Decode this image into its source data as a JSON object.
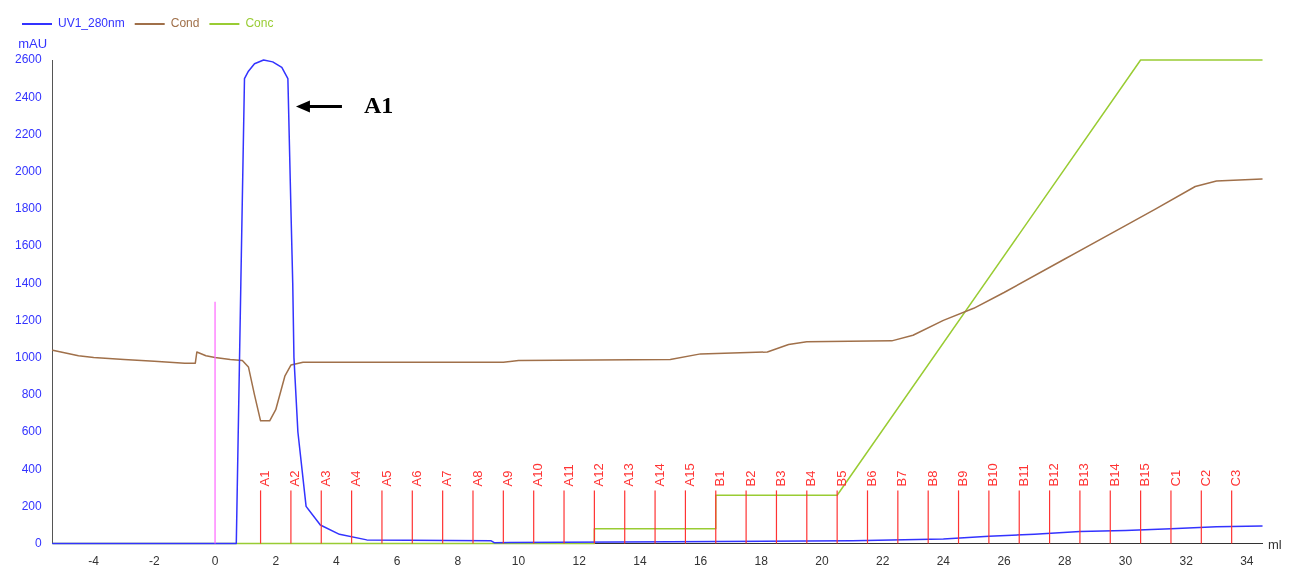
{
  "chart_data": {
    "type": "line",
    "ylabel": "mAU",
    "xlabel": "ml",
    "xlim": [
      -5.35,
      34.5
    ],
    "xticks": [
      -4,
      -2,
      0,
      2,
      4,
      6,
      8,
      10,
      12,
      14,
      16,
      18,
      20,
      22,
      24,
      26,
      28,
      30,
      32,
      34
    ],
    "ylim": [
      0,
      2600
    ],
    "yticks": [
      0,
      200,
      400,
      600,
      800,
      1000,
      1200,
      1400,
      1600,
      1800,
      2000,
      2200,
      2400,
      2600
    ],
    "grid": false,
    "legend": "top left",
    "marker": "none",
    "line_style": "solid",
    "series": [
      {
        "name": "UV1_280nm",
        "color": "#3333ff",
        "x": [
          -5.35,
          0.7,
          0.85,
          0.97,
          1.1,
          1.3,
          1.6,
          1.9,
          2.2,
          2.4,
          2.5,
          2.56,
          2.6,
          2.73,
          3.0,
          3.47,
          4.1,
          5.0,
          9.1,
          9.2,
          15,
          21,
          24,
          25.5,
          27,
          28.5,
          30,
          31.5,
          33,
          34.5
        ],
        "values": [
          0,
          0,
          1400,
          2500,
          2540,
          2580,
          2600,
          2590,
          2560,
          2500,
          1800,
          1400,
          1000,
          600,
          200,
          100,
          50,
          20,
          15,
          5,
          10,
          15,
          25,
          40,
          50,
          65,
          70,
          80,
          90,
          95
        ]
      },
      {
        "name": "Cond",
        "color": "#a0704a",
        "x": [
          -5.35,
          -4.5,
          -4,
          -3,
          -2,
          -1,
          -0.65,
          -0.6,
          -0.3,
          0,
          0.5,
          0.9,
          1.1,
          1.3,
          1.5,
          1.8,
          2.0,
          2.3,
          2.5,
          2.9,
          9.5,
          10,
          15,
          16,
          18.2,
          18.9,
          19.5,
          22.3,
          23,
          24,
          25,
          26,
          28,
          30,
          31,
          32.3,
          33,
          34.5
        ],
        "values": [
          1040,
          1010,
          1000,
          990,
          980,
          970,
          970,
          1030,
          1010,
          1000,
          990,
          985,
          950,
          800,
          660,
          660,
          720,
          900,
          960,
          975,
          975,
          985,
          990,
          1020,
          1030,
          1070,
          1085,
          1090,
          1120,
          1200,
          1265,
          1350,
          1530,
          1710,
          1800,
          1920,
          1950,
          1960
        ]
      },
      {
        "name": "Conc",
        "color": "#99cc33",
        "x": [
          -5.35,
          12.5,
          12.5,
          16.5,
          16.5,
          20.5,
          30.5,
          34.5
        ],
        "values": [
          0,
          0,
          80,
          80,
          260,
          260,
          2600,
          2600
        ]
      }
    ],
    "ref_lines": [
      {
        "axis": "x",
        "value": 0,
        "label": null,
        "color": "#ff66ff"
      },
      {
        "axis": "x",
        "value": 1.5,
        "label": "A1",
        "color": "#ff3333"
      },
      {
        "axis": "x",
        "value": 2.5,
        "label": "A2",
        "color": "#ff3333"
      },
      {
        "axis": "x",
        "value": 3.5,
        "label": "A3",
        "color": "#ff3333"
      },
      {
        "axis": "x",
        "value": 4.5,
        "label": "A4",
        "color": "#ff3333"
      },
      {
        "axis": "x",
        "value": 5.5,
        "label": "A5",
        "color": "#ff3333"
      },
      {
        "axis": "x",
        "value": 6.5,
        "label": "A6",
        "color": "#ff3333"
      },
      {
        "axis": "x",
        "value": 7.5,
        "label": "A7",
        "color": "#ff3333"
      },
      {
        "axis": "x",
        "value": 8.5,
        "label": "A8",
        "color": "#ff3333"
      },
      {
        "axis": "x",
        "value": 9.5,
        "label": "A9",
        "color": "#ff3333"
      },
      {
        "axis": "x",
        "value": 10.5,
        "label": "A10",
        "color": "#ff3333"
      },
      {
        "axis": "x",
        "value": 11.5,
        "label": "A11",
        "color": "#ff3333"
      },
      {
        "axis": "x",
        "value": 12.5,
        "label": "A12",
        "color": "#ff3333"
      },
      {
        "axis": "x",
        "value": 13.5,
        "label": "A13",
        "color": "#ff3333"
      },
      {
        "axis": "x",
        "value": 14.5,
        "label": "A14",
        "color": "#ff3333"
      },
      {
        "axis": "x",
        "value": 15.5,
        "label": "A15",
        "color": "#ff3333"
      },
      {
        "axis": "x",
        "value": 16.5,
        "label": "B1",
        "color": "#ff3333"
      },
      {
        "axis": "x",
        "value": 17.5,
        "label": "B2",
        "color": "#ff3333"
      },
      {
        "axis": "x",
        "value": 18.5,
        "label": "B3",
        "color": "#ff3333"
      },
      {
        "axis": "x",
        "value": 19.5,
        "label": "B4",
        "color": "#ff3333"
      },
      {
        "axis": "x",
        "value": 20.5,
        "label": "B5",
        "color": "#ff3333"
      },
      {
        "axis": "x",
        "value": 21.5,
        "label": "B6",
        "color": "#ff3333"
      },
      {
        "axis": "x",
        "value": 22.5,
        "label": "B7",
        "color": "#ff3333"
      },
      {
        "axis": "x",
        "value": 23.5,
        "label": "B8",
        "color": "#ff3333"
      },
      {
        "axis": "x",
        "value": 24.5,
        "label": "B9",
        "color": "#ff3333"
      },
      {
        "axis": "x",
        "value": 25.5,
        "label": "B10",
        "color": "#ff3333"
      },
      {
        "axis": "x",
        "value": 26.5,
        "label": "B11",
        "color": "#ff3333"
      },
      {
        "axis": "x",
        "value": 27.5,
        "label": "B12",
        "color": "#ff3333"
      },
      {
        "axis": "x",
        "value": 28.5,
        "label": "B13",
        "color": "#ff3333"
      },
      {
        "axis": "x",
        "value": 29.5,
        "label": "B14",
        "color": "#ff3333"
      },
      {
        "axis": "x",
        "value": 30.5,
        "label": "B15",
        "color": "#ff3333"
      },
      {
        "axis": "x",
        "value": 31.5,
        "label": "C1",
        "color": "#ff3333"
      },
      {
        "axis": "x",
        "value": 32.5,
        "label": "C2",
        "color": "#ff3333"
      },
      {
        "axis": "x",
        "value": 33.5,
        "label": "C3",
        "color": "#ff3333"
      }
    ],
    "annotations": [
      {
        "text": "A1",
        "x": 2.6,
        "y": 2350
      }
    ]
  }
}
